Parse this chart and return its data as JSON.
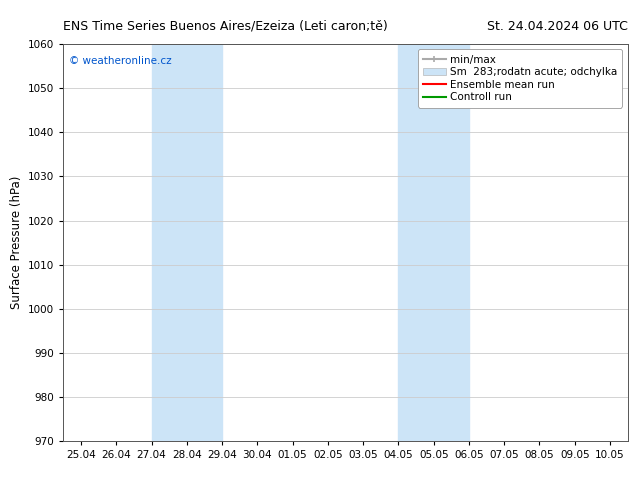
{
  "title_left": "ENS Time Series Buenos Aires/Ezeiza (Leti caron;tě)",
  "title_right": "St. 24.04.2024 06 UTC",
  "ylabel": "Surface Pressure (hPa)",
  "ylim": [
    970,
    1060
  ],
  "yticks": [
    970,
    980,
    990,
    1000,
    1010,
    1020,
    1030,
    1040,
    1050,
    1060
  ],
  "xtick_labels": [
    "25.04",
    "26.04",
    "27.04",
    "28.04",
    "29.04",
    "30.04",
    "01.05",
    "02.05",
    "03.05",
    "04.05",
    "05.05",
    "06.05",
    "07.05",
    "08.05",
    "09.05",
    "10.05"
  ],
  "watermark": "© weatheronline.cz",
  "watermark_color": "#0055cc",
  "background_color": "#ffffff",
  "plot_bg_color": "#ffffff",
  "shaded_regions": [
    {
      "xstart": 2.0,
      "xend": 4.0,
      "color": "#cce4f7"
    },
    {
      "xstart": 9.0,
      "xend": 11.0,
      "color": "#cce4f7"
    }
  ],
  "legend_entries": [
    {
      "label": "min/max",
      "color": "#aaaaaa",
      "lw": 1.5
    },
    {
      "label": "283;rodatn acute; odchylka",
      "color": "#cce4f7",
      "lw": 8
    },
    {
      "label": "Ensemble mean run",
      "color": "#ff0000",
      "lw": 1.5
    },
    {
      "label": "Controll run",
      "color": "#009900",
      "lw": 1.5
    }
  ],
  "legend_prefix": "Sm",
  "grid_color": "#cccccc",
  "title_fontsize": 9,
  "tick_fontsize": 7.5,
  "ylabel_fontsize": 8.5,
  "legend_fontsize": 7.5
}
